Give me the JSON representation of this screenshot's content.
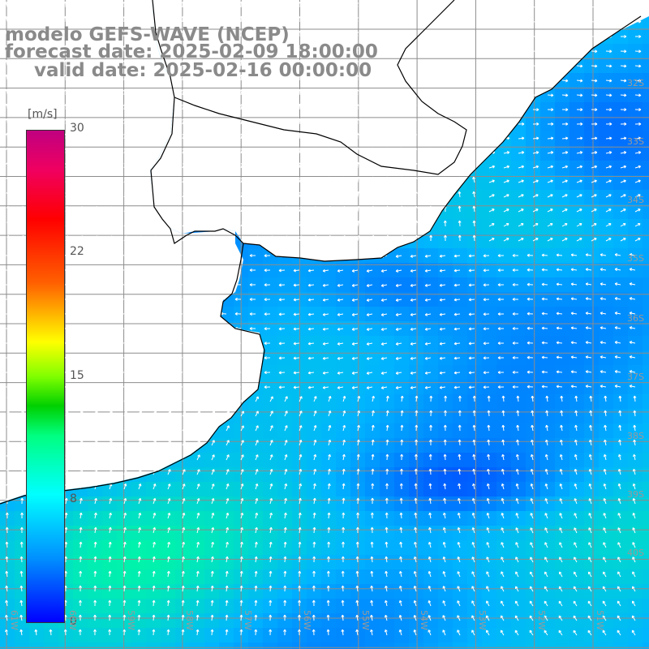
{
  "title": {
    "line1": "modelo GEFS-WAVE (NCEP)",
    "line2": "forecast date: 2025-02-09 18:00:00",
    "line3": "valid date: 2025-02-16 00:00:00"
  },
  "colorbar": {
    "unit": "[m/s]",
    "min": 0,
    "max": 30,
    "ticks": [
      "0",
      "8",
      "15",
      "22",
      "30"
    ],
    "tick_values": [
      0,
      8,
      15,
      22,
      30
    ]
  },
  "axes": {
    "lat_labels": [
      "32S",
      "33S",
      "34S",
      "35S",
      "36S",
      "37S",
      "38S",
      "39S",
      "40S"
    ],
    "lon_labels": [
      "61W",
      "60W",
      "59W",
      "58W",
      "57W",
      "56W",
      "55W",
      "54W",
      "53W",
      "52W",
      "51W"
    ]
  },
  "colors": {
    "land": "#ffffff",
    "coast": "#000000",
    "grid": "#8c8c8c",
    "wind_low": "#0000ff",
    "wind_mid": "#00ffff",
    "wind_high": "#00ff80"
  }
}
